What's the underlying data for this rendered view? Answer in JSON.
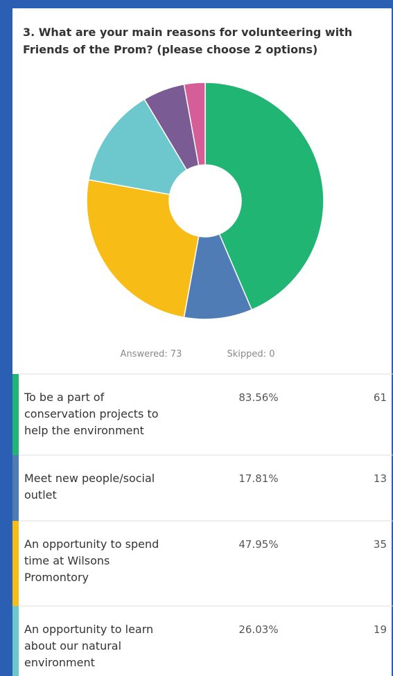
{
  "question": {
    "lines": [
      "3. What are your main reasons for volunteering with",
      "Friends of the Prom? (please choose 2 options)"
    ]
  },
  "chart_data": {
    "type": "donut",
    "values": [
      61,
      13,
      35,
      19,
      8,
      4
    ],
    "colors": [
      "#21b574",
      "#507cb6",
      "#f7bd16",
      "#6cc8cc",
      "#7b5b93",
      "#d55e98"
    ]
  },
  "summary": {
    "answered": "Answered: 73",
    "skipped": "Skipped: 0"
  },
  "table": {
    "rows": [
      {
        "label_lines": [
          "To be a part of",
          "conservation projects to",
          "help the environment"
        ],
        "percent": "83.56%",
        "count": 61
      },
      {
        "label_lines": [
          "Meet new people/social",
          "outlet"
        ],
        "percent": "17.81%",
        "count": 13
      },
      {
        "label_lines": [
          "An opportunity to spend",
          "time at Wilsons",
          "Promontory"
        ],
        "percent": "47.95%",
        "count": 35
      },
      {
        "label_lines": [
          "An opportunity to learn",
          "about our natural",
          "environment"
        ],
        "percent": "26.03%",
        "count": 19
      }
    ]
  }
}
